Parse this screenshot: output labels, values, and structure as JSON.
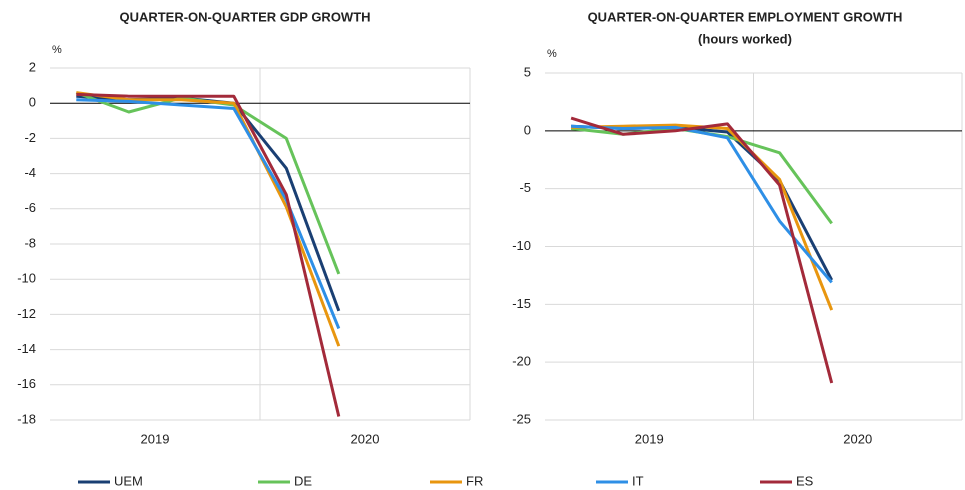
{
  "chart_data": [
    {
      "type": "line",
      "title": "QUARTER-ON-QUARTER GDP GROWTH",
      "unit": "%",
      "categories": [
        null,
        null,
        null,
        null,
        null,
        null,
        null,
        null
      ],
      "x_groups": [
        "2019",
        "2020"
      ],
      "ylim": [
        -18,
        2
      ],
      "yticks": [
        2,
        0,
        -2,
        -4,
        -6,
        -8,
        -10,
        -12,
        -14,
        -16,
        -18
      ],
      "grid": true,
      "series": [
        {
          "name": "UEM",
          "color": "#1a3f73",
          "values": [
            0.4,
            0.2,
            0.3,
            0.0,
            -3.7,
            -11.8,
            null,
            null
          ]
        },
        {
          "name": "DE",
          "color": "#66c35a",
          "values": [
            0.6,
            -0.5,
            0.3,
            -0.1,
            -2.0,
            -9.7,
            null,
            null
          ]
        },
        {
          "name": "FR",
          "color": "#e8960f",
          "values": [
            0.6,
            0.2,
            0.2,
            0.0,
            -5.9,
            -13.8,
            null,
            null
          ]
        },
        {
          "name": "IT",
          "color": "#2e8fe6",
          "values": [
            0.2,
            0.1,
            -0.1,
            -0.3,
            -5.5,
            -12.8,
            null,
            null
          ]
        },
        {
          "name": "ES",
          "color": "#a32a3a",
          "values": [
            0.5,
            0.4,
            0.4,
            0.4,
            -5.2,
            -17.8,
            null,
            null
          ]
        }
      ]
    },
    {
      "type": "line",
      "title": "QUARTER-ON-QUARTER EMPLOYMENT GROWTH",
      "subtitle": "(hours worked)",
      "unit": "%",
      "categories": [
        null,
        null,
        null,
        null,
        null,
        null,
        null,
        null
      ],
      "x_groups": [
        "2019",
        "2020"
      ],
      "ylim": [
        -25,
        5
      ],
      "yticks": [
        5,
        0,
        -5,
        -10,
        -15,
        -20,
        -25
      ],
      "grid": true,
      "series": [
        {
          "name": "UEM",
          "color": "#1a3f73",
          "values": [
            0.4,
            0.2,
            0.3,
            -0.1,
            -4.3,
            -12.9,
            null,
            null
          ]
        },
        {
          "name": "DE",
          "color": "#66c35a",
          "values": [
            0.2,
            -0.3,
            0.2,
            -0.5,
            -1.9,
            -8.0,
            null,
            null
          ]
        },
        {
          "name": "FR",
          "color": "#e8960f",
          "values": [
            0.3,
            0.4,
            0.5,
            0.2,
            -4.2,
            -15.5,
            null,
            null
          ]
        },
        {
          "name": "IT",
          "color": "#2e8fe6",
          "values": [
            0.4,
            0.2,
            0.3,
            -0.6,
            -7.8,
            -13.1,
            null,
            null
          ]
        },
        {
          "name": "ES",
          "color": "#a32a3a",
          "values": [
            1.1,
            -0.3,
            0.0,
            0.6,
            -4.7,
            -21.8,
            null,
            null
          ]
        }
      ]
    }
  ]
}
